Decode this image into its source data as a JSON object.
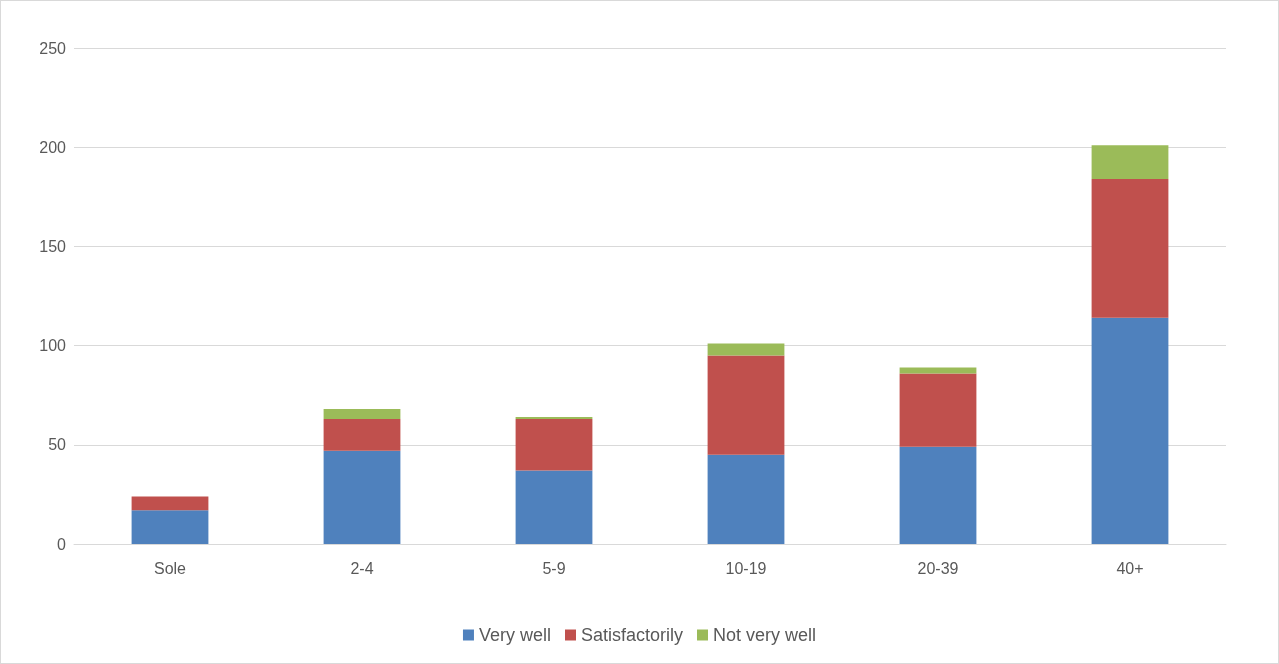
{
  "chart_data": {
    "type": "bar",
    "stacked": true,
    "categories": [
      "Sole",
      "2-4",
      "5-9",
      "10-19",
      "20-39",
      "40+"
    ],
    "series": [
      {
        "name": "Very well",
        "color": "#4f81bd",
        "values": [
          17,
          47,
          37,
          45,
          49,
          114
        ]
      },
      {
        "name": "Satisfactorily",
        "color": "#c0504d",
        "values": [
          7,
          16,
          26,
          50,
          37,
          70
        ]
      },
      {
        "name": "Not very well",
        "color": "#9bbb59",
        "values": [
          0,
          5,
          1,
          6,
          3,
          17
        ]
      }
    ],
    "ylim": [
      0,
      250
    ],
    "yticks": [
      0,
      50,
      100,
      150,
      200,
      250
    ],
    "grid": "y",
    "legend": "bottom"
  }
}
